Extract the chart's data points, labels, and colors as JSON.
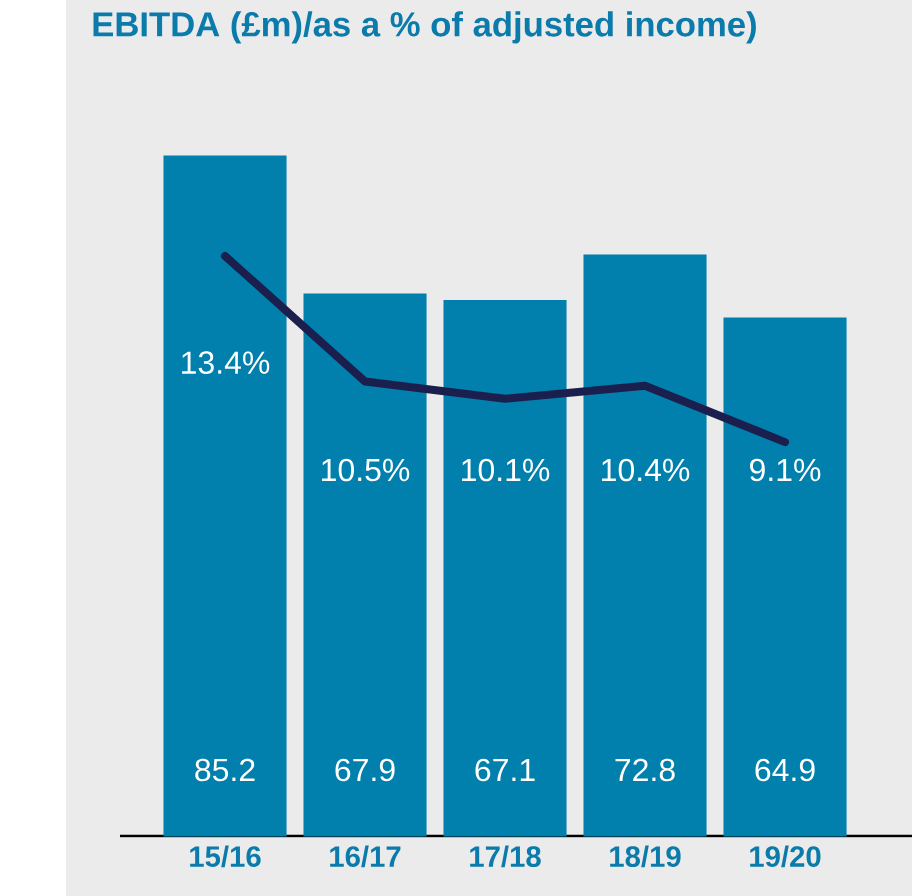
{
  "chart_data": {
    "type": "bar",
    "title": "EBITDA (£m)/as a % of adjusted income)",
    "categories": [
      "15/16",
      "16/17",
      "17/18",
      "18/19",
      "19/20"
    ],
    "series": [
      {
        "type": "bar",
        "color": "#0180ad",
        "data_labels": true,
        "values": [
          85.2,
          67.9,
          67.1,
          72.8,
          64.9
        ]
      },
      {
        "type": "line",
        "axis": "y2",
        "color": "#1b1f4e",
        "line_style": "solid",
        "values": [
          13.4,
          10.5,
          10.1,
          10.4,
          9.1
        ],
        "value_labels": [
          "13.4%",
          "10.5%",
          "10.1%",
          "10.4%",
          "9.1%"
        ]
      }
    ],
    "tick_labels": "x"
  }
}
